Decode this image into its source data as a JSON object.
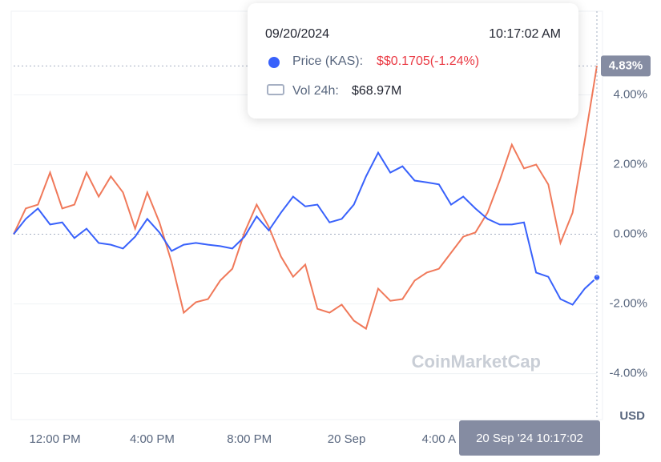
{
  "chart_data": {
    "type": "line",
    "x": [
      0,
      0.5,
      1,
      1.5,
      2,
      2.5,
      3,
      3.5,
      4,
      4.5,
      5,
      5.5,
      6,
      6.5,
      7,
      7.5,
      8,
      8.5,
      9,
      9.5,
      10,
      10.5,
      11,
      11.5,
      12,
      12.5,
      13,
      13.5,
      14,
      14.5,
      15,
      15.5,
      16,
      16.5,
      17,
      17.5,
      18,
      18.5,
      19,
      19.5,
      20,
      20.5,
      21,
      21.5,
      22,
      22.5,
      23,
      23.5,
      24
    ],
    "series": [
      {
        "name": "Price (KAS):",
        "color": "#3861fb",
        "values": [
          0,
          0.44,
          0.74,
          0.28,
          0.34,
          -0.11,
          0.16,
          -0.25,
          -0.3,
          -0.41,
          -0.07,
          0.44,
          0.05,
          -0.48,
          -0.3,
          -0.25,
          -0.3,
          -0.34,
          -0.41,
          -0.07,
          0.51,
          0.11,
          0.62,
          1.08,
          0.8,
          0.85,
          0.34,
          0.44,
          0.85,
          1.66,
          2.34,
          1.77,
          1.95,
          1.54,
          1.49,
          1.43,
          0.85,
          1.08,
          0.74,
          0.44,
          0.28,
          0.28,
          0.34,
          -1.1,
          -1.22,
          -1.86,
          -2.02,
          -1.56,
          -1.24
        ]
      },
      {
        "color": "#f0795a",
        "values": [
          0,
          0.74,
          0.85,
          1.77,
          0.74,
          0.85,
          1.77,
          1.08,
          1.66,
          1.2,
          0.16,
          1.2,
          0.34,
          -0.8,
          -2.25,
          -1.95,
          -1.86,
          -1.33,
          -0.99,
          0.05,
          0.85,
          0.21,
          -0.64,
          -1.22,
          -0.87,
          -2.14,
          -2.25,
          -2.02,
          -2.48,
          -2.71,
          -1.56,
          -1.91,
          -1.86,
          -1.33,
          -1.1,
          -0.99,
          -0.53,
          -0.07,
          0.05,
          0.62,
          1.54,
          2.57,
          1.89,
          2.0,
          1.43,
          -0.25,
          0.62,
          2.69,
          4.83
        ]
      }
    ],
    "xlim": [
      0,
      24
    ],
    "xticks": [
      {
        "value": 1.7,
        "label": "12:00 PM"
      },
      {
        "value": 5.7,
        "label": "4:00 PM"
      },
      {
        "value": 9.7,
        "label": "8:00 PM"
      },
      {
        "value": 13.7,
        "label": "20 Sep"
      },
      {
        "value": 17.5,
        "label": "4:00 A"
      }
    ],
    "ylim": [
      -5.8,
      6.4
    ],
    "yticks": [
      {
        "value": -4,
        "label": "-4.00%"
      },
      {
        "value": -2,
        "label": "-2.00%"
      },
      {
        "value": 0,
        "label": "0.00%"
      },
      {
        "value": 2,
        "label": "2.00%"
      },
      {
        "value": 4,
        "label": "4.00%"
      }
    ],
    "y_unit": "USD",
    "grid": true,
    "marker": {
      "value": 4.83,
      "label": "4.83%"
    },
    "crosshair_label": "20 Sep '24 10:17:02",
    "watermark": "CoinMarketCap",
    "tooltip": {
      "date": "09/20/2024",
      "time": "10:17:02 AM",
      "price": "$$0.1705(-1.24%)",
      "volume_label": "Vol 24h:",
      "volume": "$68.97M"
    }
  }
}
